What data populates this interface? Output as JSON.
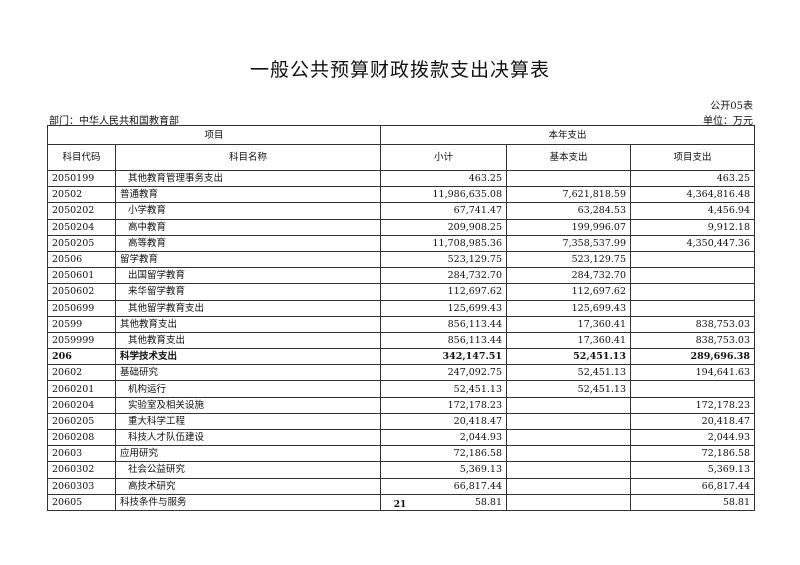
{
  "title": "一般公共预算财政拨款支出决算表",
  "form_no": "公开05表",
  "department": "部门：中华人民共和国教育部",
  "unit": "单位：万元",
  "table": {
    "group_headers": {
      "item": "项目",
      "current_year": "本年支出"
    },
    "columns": [
      "科目代码",
      "科目名称",
      "小计",
      "基本支出",
      "项目支出"
    ],
    "rows": [
      {
        "code": "2050199",
        "name": "其他教育管理事务支出",
        "indent": true,
        "subtotal": "463.25",
        "basic": "",
        "project": "463.25"
      },
      {
        "code": "20502",
        "name": "普通教育",
        "indent": false,
        "subtotal": "11,986,635.08",
        "basic": "7,621,818.59",
        "project": "4,364,816.48"
      },
      {
        "code": "2050202",
        "name": "小学教育",
        "indent": true,
        "subtotal": "67,741.47",
        "basic": "63,284.53",
        "project": "4,456.94"
      },
      {
        "code": "2050204",
        "name": "高中教育",
        "indent": true,
        "subtotal": "209,908.25",
        "basic": "199,996.07",
        "project": "9,912.18"
      },
      {
        "code": "2050205",
        "name": "高等教育",
        "indent": true,
        "subtotal": "11,708,985.36",
        "basic": "7,358,537.99",
        "project": "4,350,447.36"
      },
      {
        "code": "20506",
        "name": "留学教育",
        "indent": false,
        "subtotal": "523,129.75",
        "basic": "523,129.75",
        "project": ""
      },
      {
        "code": "2050601",
        "name": "出国留学教育",
        "indent": true,
        "subtotal": "284,732.70",
        "basic": "284,732.70",
        "project": ""
      },
      {
        "code": "2050602",
        "name": "来华留学教育",
        "indent": true,
        "subtotal": "112,697.62",
        "basic": "112,697.62",
        "project": ""
      },
      {
        "code": "2050699",
        "name": "其他留学教育支出",
        "indent": true,
        "subtotal": "125,699.43",
        "basic": "125,699.43",
        "project": ""
      },
      {
        "code": "20599",
        "name": "其他教育支出",
        "indent": false,
        "subtotal": "856,113.44",
        "basic": "17,360.41",
        "project": "838,753.03"
      },
      {
        "code": "2059999",
        "name": "其他教育支出",
        "indent": true,
        "subtotal": "856,113.44",
        "basic": "17,360.41",
        "project": "838,753.03"
      },
      {
        "code": "206",
        "name": "科学技术支出",
        "indent": false,
        "bold": true,
        "subtotal": "342,147.51",
        "basic": "52,451.13",
        "project": "289,696.38"
      },
      {
        "code": "20602",
        "name": "基础研究",
        "indent": false,
        "subtotal": "247,092.75",
        "basic": "52,451.13",
        "project": "194,641.63"
      },
      {
        "code": "2060201",
        "name": "机构运行",
        "indent": true,
        "subtotal": "52,451.13",
        "basic": "52,451.13",
        "project": ""
      },
      {
        "code": "2060204",
        "name": "实验室及相关设施",
        "indent": true,
        "subtotal": "172,178.23",
        "basic": "",
        "project": "172,178.23"
      },
      {
        "code": "2060205",
        "name": "重大科学工程",
        "indent": true,
        "subtotal": "20,418.47",
        "basic": "",
        "project": "20,418.47"
      },
      {
        "code": "2060208",
        "name": "科技人才队伍建设",
        "indent": true,
        "subtotal": "2,044.93",
        "basic": "",
        "project": "2,044.93"
      },
      {
        "code": "20603",
        "name": "应用研究",
        "indent": false,
        "subtotal": "72,186.58",
        "basic": "",
        "project": "72,186.58"
      },
      {
        "code": "2060302",
        "name": "社会公益研究",
        "indent": true,
        "subtotal": "5,369.13",
        "basic": "",
        "project": "5,369.13"
      },
      {
        "code": "2060303",
        "name": "高技术研究",
        "indent": true,
        "subtotal": "66,817.44",
        "basic": "",
        "project": "66,817.44"
      },
      {
        "code": "20605",
        "name": "科技条件与服务",
        "indent": false,
        "subtotal": "58.81",
        "basic": "",
        "project": "58.81"
      }
    ]
  },
  "page_number": "21"
}
